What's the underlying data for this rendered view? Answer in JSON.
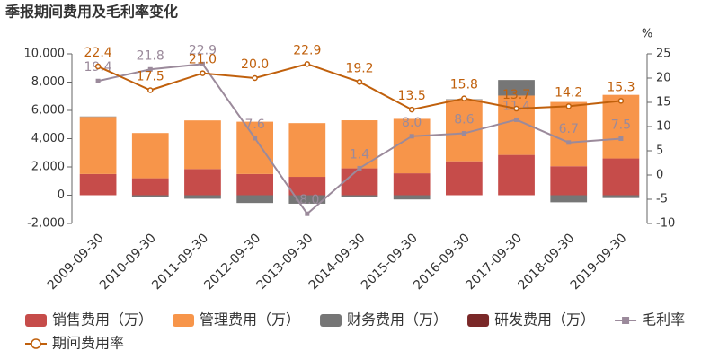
{
  "chart_data": {
    "type": "bar-line",
    "title": "季报期间费用及毛利率变化",
    "y2label": "%",
    "categories": [
      "2009-09-30",
      "2010-09-30",
      "2011-09-30",
      "2012-09-30",
      "2013-09-30",
      "2014-09-30",
      "2015-09-30",
      "2016-09-30",
      "2017-09-30",
      "2018-09-30",
      "2019-09-30"
    ],
    "ylim": [
      -2000,
      10000
    ],
    "yticks": [
      {
        "value": -2000,
        "label": "-2,000"
      },
      0,
      {
        "value": 2000,
        "label": "2,000"
      },
      {
        "value": 4000,
        "label": "4,000"
      },
      {
        "value": 6000,
        "label": "6,000"
      },
      {
        "value": 8000,
        "label": "8,000"
      },
      {
        "value": 10000,
        "label": "10,000"
      }
    ],
    "y2lim": [
      -10,
      25
    ],
    "y2ticks": [
      -10,
      -5,
      0,
      5,
      10,
      15,
      20,
      25
    ],
    "series": [
      {
        "name": "销售费用（万）",
        "type": "bar",
        "color": "#c64c4a",
        "values": [
          1500,
          1200,
          1850,
          1500,
          1300,
          1900,
          1550,
          2400,
          2850,
          2050,
          2600
        ]
      },
      {
        "name": "管理费用（万）",
        "type": "bar",
        "color": "#f7954a",
        "values": [
          4040,
          3200,
          3440,
          3700,
          3800,
          3400,
          3850,
          4350,
          4200,
          4550,
          4500
        ]
      },
      {
        "name": "财务费用（万）",
        "type": "bar",
        "color": "#767676",
        "values": [
          30,
          -100,
          -250,
          -550,
          -600,
          -150,
          -300,
          40,
          1100,
          -500,
          -200
        ]
      },
      {
        "name": "研发费用（万）",
        "type": "bar",
        "color": "#7a2828",
        "values": [
          null,
          null,
          null,
          null,
          null,
          null,
          null,
          null,
          null,
          null,
          null
        ]
      },
      {
        "name": "毛利率",
        "type": "line",
        "axis": "y2",
        "color": "#9b8a9b",
        "marker": "square",
        "values": [
          19.4,
          21.8,
          22.9,
          7.6,
          -8.0,
          1.4,
          8.0,
          8.6,
          11.4,
          6.7,
          7.5
        ],
        "value_labels": [
          "19.4",
          "21.8",
          "22.9",
          "7.6",
          "-8.0",
          "1.4",
          "8.0",
          "8.6",
          "11.4",
          "6.7",
          "7.5"
        ]
      },
      {
        "name": "期间费用率",
        "type": "line",
        "axis": "y2",
        "color": "#c0600c",
        "marker": "circle",
        "values": [
          22.4,
          17.5,
          21.0,
          20.0,
          22.9,
          19.2,
          13.5,
          15.8,
          13.7,
          14.2,
          15.3
        ],
        "value_labels": [
          "22.4",
          "17.5",
          "21.0",
          "20.0",
          "22.9",
          "19.2",
          "13.5",
          "15.8",
          "13.7",
          "14.2",
          "15.3"
        ]
      }
    ]
  }
}
